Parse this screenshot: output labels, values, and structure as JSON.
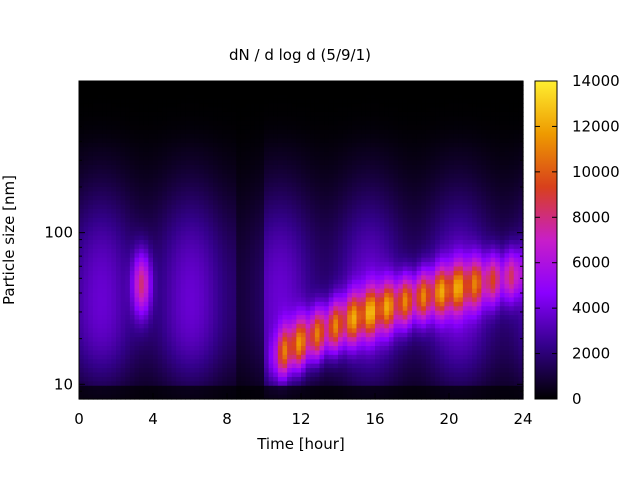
{
  "chart_data": {
    "type": "heatmap",
    "title": "dN / d log d (5/9/1)",
    "xlabel": "Time [hour]",
    "ylabel": "Particle size [nm]",
    "x_ticks": [
      0,
      4,
      8,
      12,
      16,
      20,
      24
    ],
    "y_ticks": [
      10,
      100
    ],
    "x_range": [
      0,
      24
    ],
    "y_range": [
      8,
      1000
    ],
    "y_scale": "log",
    "colorbar": {
      "range": [
        0,
        14000
      ],
      "ticks": [
        0,
        2000,
        4000,
        6000,
        8000,
        10000,
        12000,
        14000
      ],
      "colormap": [
        "#000000",
        "#33008a",
        "#8a00ff",
        "#c81ec8",
        "#d8401c",
        "#ee9a00",
        "#ffee30"
      ]
    },
    "features": [
      {
        "description_time_hour": 3.5,
        "peak_size_nm": 45,
        "peak_value": 6500
      },
      {
        "description_time_hour": 11,
        "peak_size_nm": 15,
        "peak_value": 9500
      },
      {
        "description_time_hour": 14,
        "peak_size_nm": 30,
        "peak_value": 10500
      },
      {
        "description_time_hour": 16,
        "peak_size_nm": 35,
        "peak_value": 10000
      },
      {
        "description_time_hour": 19.5,
        "peak_size_nm": 45,
        "peak_value": 9500
      },
      {
        "description_time_hour": 23,
        "peak_size_nm": 50,
        "peak_value": 6500
      }
    ]
  }
}
